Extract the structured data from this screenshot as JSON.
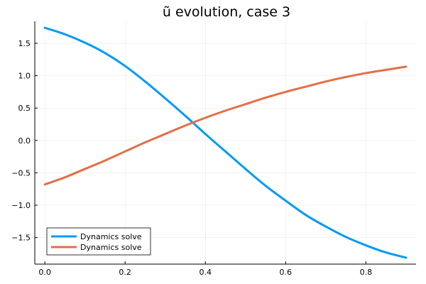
{
  "chart_data": {
    "type": "line",
    "title": "ũ evolution, case 3",
    "xlabel": "",
    "ylabel": "",
    "xlim": [
      -0.025,
      0.925
    ],
    "ylim": [
      -1.91,
      1.84
    ],
    "xticks": [
      0.0,
      0.2,
      0.4,
      0.6,
      0.8
    ],
    "xtick_labels": [
      "0.0",
      "0.2",
      "0.4",
      "0.6",
      "0.8"
    ],
    "yticks": [
      1.5,
      1.0,
      0.5,
      0.0,
      -0.5,
      -1.0,
      -1.5
    ],
    "ytick_labels": [
      "1.5",
      "1.0",
      "0.5",
      "0.0",
      "−0.5",
      "−1.0",
      "−1.5"
    ],
    "grid": true,
    "legend_position": "bottom-left",
    "series": [
      {
        "name": "Dynamics solve",
        "color": "#009af9",
        "x": [
          0.0,
          0.05,
          0.1,
          0.15,
          0.2,
          0.25,
          0.3,
          0.35,
          0.4,
          0.45,
          0.5,
          0.55,
          0.6,
          0.65,
          0.7,
          0.75,
          0.8,
          0.85,
          0.9
        ],
        "y": [
          1.74,
          1.64,
          1.51,
          1.35,
          1.15,
          0.91,
          0.65,
          0.38,
          0.1,
          -0.17,
          -0.44,
          -0.7,
          -0.93,
          -1.15,
          -1.33,
          -1.49,
          -1.62,
          -1.73,
          -1.81
        ]
      },
      {
        "name": "Dynamics solve",
        "color": "#e26f46",
        "x": [
          0.0,
          0.05,
          0.1,
          0.15,
          0.2,
          0.25,
          0.3,
          0.35,
          0.4,
          0.45,
          0.5,
          0.55,
          0.6,
          0.65,
          0.7,
          0.75,
          0.8,
          0.85,
          0.9
        ],
        "y": [
          -0.68,
          -0.57,
          -0.44,
          -0.31,
          -0.17,
          -0.03,
          0.1,
          0.23,
          0.35,
          0.46,
          0.56,
          0.66,
          0.75,
          0.83,
          0.91,
          0.98,
          1.04,
          1.09,
          1.14
        ]
      }
    ]
  }
}
